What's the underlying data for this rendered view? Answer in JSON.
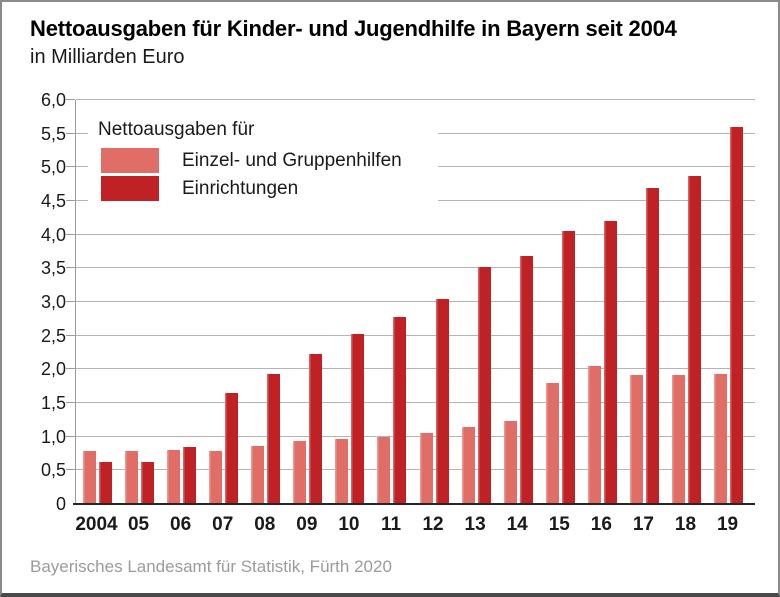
{
  "header": {
    "title": "Nettoausgaben für Kinder- und Jugendhilfe in Bayern seit 2004",
    "subtitle": "in Milliarden Euro"
  },
  "legend": {
    "title": "Nettoausgaben für",
    "items": [
      {
        "label": "Einzel- und Gruppenhilfen",
        "color": "#e06e67"
      },
      {
        "label": "Einrichtungen",
        "color": "#c02124"
      }
    ]
  },
  "chart_data": {
    "type": "bar",
    "title": "Nettoausgaben für Kinder- und Jugendhilfe in Bayern seit 2004",
    "subtitle": "in Milliarden Euro",
    "categories": [
      "2004",
      "05",
      "06",
      "07",
      "08",
      "09",
      "10",
      "11",
      "12",
      "13",
      "14",
      "15",
      "16",
      "17",
      "18",
      "19"
    ],
    "series": [
      {
        "name": "Einzel- und Gruppenhilfen",
        "color": "#e06e67",
        "values": [
          0.78,
          0.78,
          0.8,
          0.79,
          0.86,
          0.93,
          0.97,
          1.0,
          1.05,
          1.14,
          1.24,
          1.8,
          2.05,
          1.91,
          1.92,
          1.93
        ]
      },
      {
        "name": "Einrichtungen",
        "color": "#c02124",
        "values": [
          0.62,
          0.63,
          0.84,
          1.65,
          1.93,
          2.23,
          2.53,
          2.78,
          3.04,
          3.52,
          3.69,
          4.05,
          4.21,
          4.7,
          4.87,
          5.6
        ]
      }
    ],
    "xlabel": "",
    "ylabel": "in Milliarden Euro",
    "ylim": [
      0,
      6
    ],
    "ytick_step": 0.5,
    "ytick_labels": [
      "0",
      "0,5",
      "1,0",
      "1,5",
      "2,0",
      "2,5",
      "3,0",
      "3,5",
      "4,0",
      "4,5",
      "5,0",
      "5,5",
      "6,0"
    ],
    "grid": "horizontal",
    "gridline_color": "#b4b4b4",
    "legend_position": "top-left-inside"
  },
  "source": {
    "text": "Bayerisches Landesamt für Statistik, Fürth 2020"
  }
}
